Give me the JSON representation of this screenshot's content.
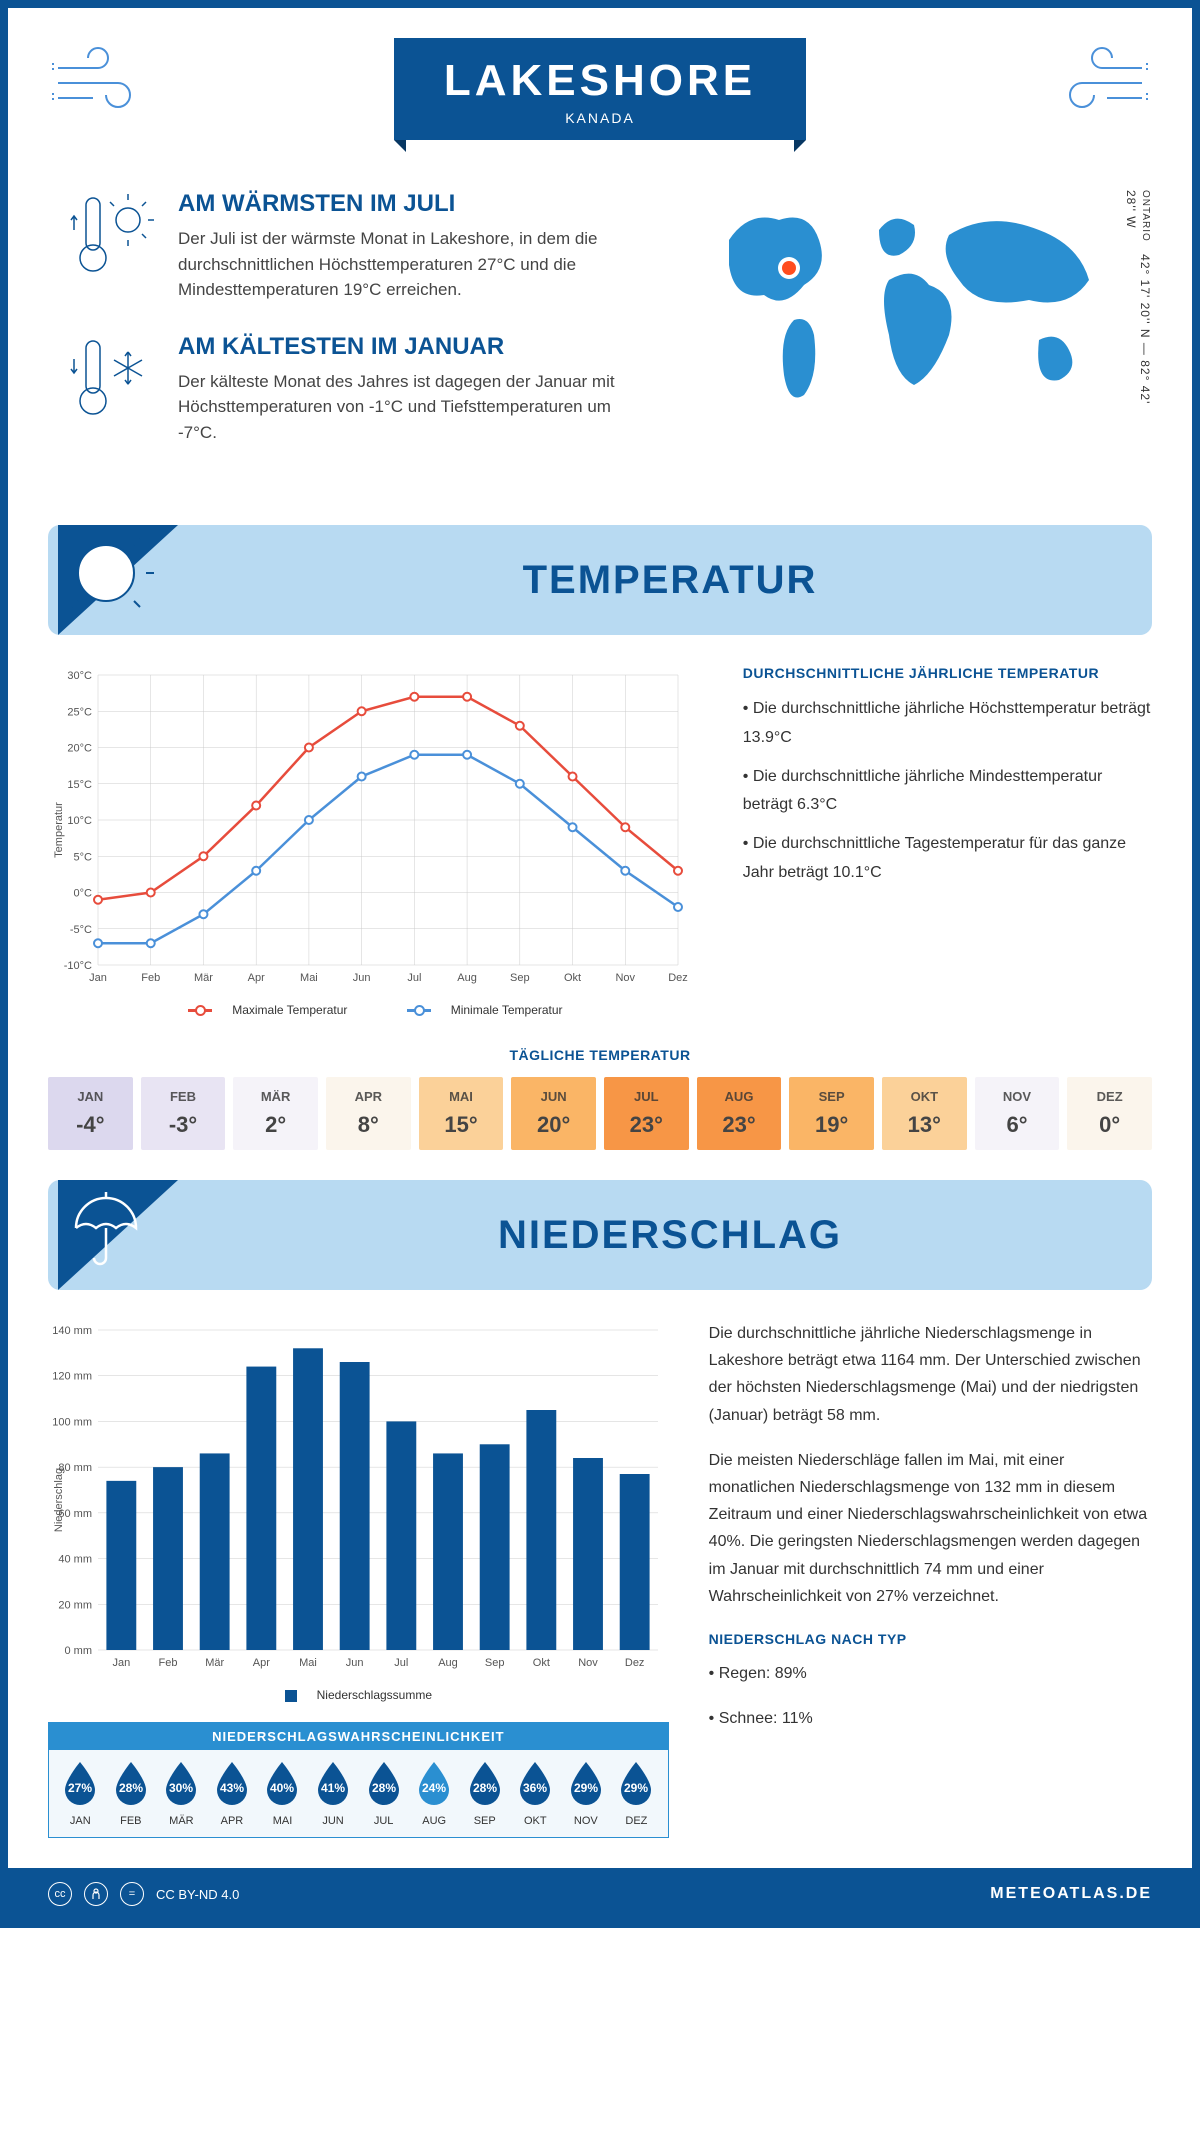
{
  "header": {
    "city": "LAKESHORE",
    "country": "KANADA"
  },
  "coords": {
    "region": "ONTARIO",
    "lat": "42° 17' 20'' N",
    "lon": "82° 42' 28'' W"
  },
  "warmest": {
    "title": "AM WÄRMSTEN IM JULI",
    "text": "Der Juli ist der wärmste Monat in Lakeshore, in dem die durchschnittlichen Höchsttemperaturen 27°C und die Mindesttemperaturen 19°C erreichen."
  },
  "coldest": {
    "title": "AM KÄLTESTEN IM JANUAR",
    "text": "Der kälteste Monat des Jahres ist dagegen der Januar mit Höchsttemperaturen von -1°C und Tiefsttemperaturen um -7°C."
  },
  "colors": {
    "brand": "#0b5394",
    "accent": "#2a8fd1",
    "header_bg": "#b8daf2",
    "max_line": "#e74c3c",
    "min_line": "#4a90d9"
  },
  "temp_section": {
    "title": "TEMPERATUR",
    "side_title": "DURCHSCHNITTLICHE JÄHRLICHE TEMPERATUR",
    "side_points": [
      "• Die durchschnittliche jährliche Höchsttemperatur beträgt 13.9°C",
      "• Die durchschnittliche jährliche Mindesttemperatur beträgt 6.3°C",
      "• Die durchschnittliche Tagestemperatur für das ganze Jahr beträgt 10.1°C"
    ],
    "chart": {
      "ylabel": "Temperatur",
      "ylim": [
        -10,
        30
      ],
      "ystep": 5,
      "months": [
        "Jan",
        "Feb",
        "Mär",
        "Apr",
        "Mai",
        "Jun",
        "Jul",
        "Aug",
        "Sep",
        "Okt",
        "Nov",
        "Dez"
      ],
      "max_values": [
        -1,
        0,
        5,
        12,
        20,
        25,
        27,
        27,
        23,
        16,
        9,
        3
      ],
      "min_values": [
        -7,
        -7,
        -3,
        3,
        10,
        16,
        19,
        19,
        15,
        9,
        3,
        -2
      ],
      "legend_max": "Maximale Temperatur",
      "legend_min": "Minimale Temperatur"
    },
    "daily": {
      "title": "TÄGLICHE TEMPERATUR",
      "months": [
        "JAN",
        "FEB",
        "MÄR",
        "APR",
        "MAI",
        "JUN",
        "JUL",
        "AUG",
        "SEP",
        "OKT",
        "NOV",
        "DEZ"
      ],
      "values": [
        "-4°",
        "-3°",
        "2°",
        "8°",
        "15°",
        "20°",
        "23°",
        "23°",
        "19°",
        "13°",
        "6°",
        "0°"
      ],
      "bgcolors": [
        "#dcd8ee",
        "#e8e4f3",
        "#f5f3f9",
        "#fbf5ec",
        "#fbd199",
        "#fab566",
        "#f79646",
        "#f79646",
        "#fab566",
        "#fbd199",
        "#f5f3f9",
        "#fbf5ec"
      ]
    }
  },
  "precip_section": {
    "title": "NIEDERSCHLAG",
    "chart": {
      "ylabel": "Niederschlag",
      "ylim": [
        0,
        140
      ],
      "ystep": 20,
      "months": [
        "Jan",
        "Feb",
        "Mär",
        "Apr",
        "Mai",
        "Jun",
        "Jul",
        "Aug",
        "Sep",
        "Okt",
        "Nov",
        "Dez"
      ],
      "values": [
        74,
        80,
        86,
        124,
        132,
        126,
        100,
        86,
        90,
        105,
        84,
        77
      ],
      "legend": "Niederschlagssumme"
    },
    "para1": "Die durchschnittliche jährliche Niederschlagsmenge in Lakeshore beträgt etwa 1164 mm. Der Unterschied zwischen der höchsten Niederschlagsmenge (Mai) und der niedrigsten (Januar) beträgt 58 mm.",
    "para2": "Die meisten Niederschläge fallen im Mai, mit einer monatlichen Niederschlagsmenge von 132 mm in diesem Zeitraum und einer Niederschlagswahrscheinlichkeit von etwa 40%. Die geringsten Niederschlagsmengen werden dagegen im Januar mit durchschnittlich 74 mm und einer Wahrscheinlichkeit von 27% verzeichnet.",
    "type_title": "NIEDERSCHLAG NACH TYP",
    "type_rain": "• Regen: 89%",
    "type_snow": "• Schnee: 11%",
    "prob": {
      "title": "NIEDERSCHLAGSWAHRSCHEINLICHKEIT",
      "months": [
        "JAN",
        "FEB",
        "MÄR",
        "APR",
        "MAI",
        "JUN",
        "JUL",
        "AUG",
        "SEP",
        "OKT",
        "NOV",
        "DEZ"
      ],
      "values": [
        "27%",
        "28%",
        "30%",
        "43%",
        "40%",
        "41%",
        "28%",
        "24%",
        "28%",
        "36%",
        "29%",
        "29%"
      ],
      "highlight_index": 7
    }
  },
  "footer": {
    "license": "CC BY-ND 4.0",
    "source": "METEOATLAS.DE"
  }
}
